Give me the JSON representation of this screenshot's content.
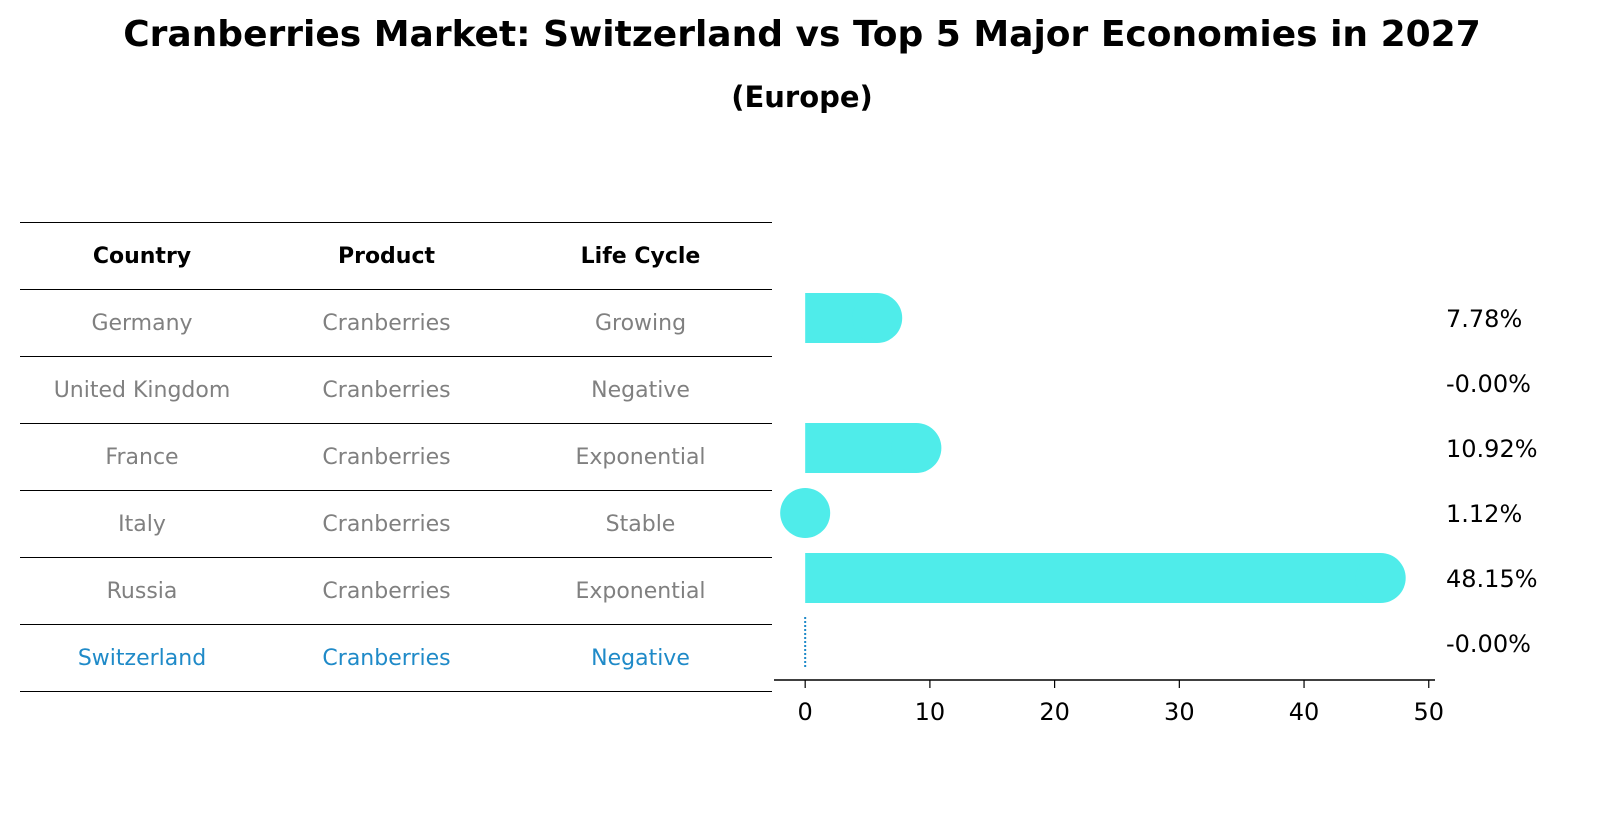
{
  "title": "Cranberries Market: Switzerland vs Top 5 Major Economies in 2027",
  "subtitle": "(Europe)",
  "table": {
    "headers": [
      "Country",
      "Product",
      "Life Cycle"
    ],
    "rows": [
      [
        "Germany",
        "Cranberries",
        "Growing"
      ],
      [
        "United Kingdom",
        "Cranberries",
        "Negative"
      ],
      [
        "France",
        "Cranberries",
        "Exponential"
      ],
      [
        "Italy",
        "Cranberries",
        "Stable"
      ],
      [
        "Russia",
        "Cranberries",
        "Exponential"
      ],
      [
        "Switzerland",
        "Cranberries",
        "Negative"
      ]
    ],
    "highlight_row": 5
  },
  "colors": {
    "bar": "#4fecea",
    "highlight": "#1f8ac8",
    "row_text": "#808080"
  },
  "chart_data": {
    "type": "bar",
    "orientation": "horizontal",
    "categories": [
      "Germany",
      "United Kingdom",
      "France",
      "Italy",
      "Russia",
      "Switzerland"
    ],
    "values": [
      7.78,
      -0.0,
      10.92,
      1.12,
      48.15,
      -0.0
    ],
    "value_labels": [
      "7.78%",
      "-0.00%",
      "10.92%",
      "1.12%",
      "48.15%",
      "-0.00%"
    ],
    "xlim": [
      -2.5,
      50.5
    ],
    "xticks": [
      0,
      10,
      20,
      30,
      40,
      50
    ],
    "title": "",
    "xlabel": "",
    "ylabel": ""
  }
}
